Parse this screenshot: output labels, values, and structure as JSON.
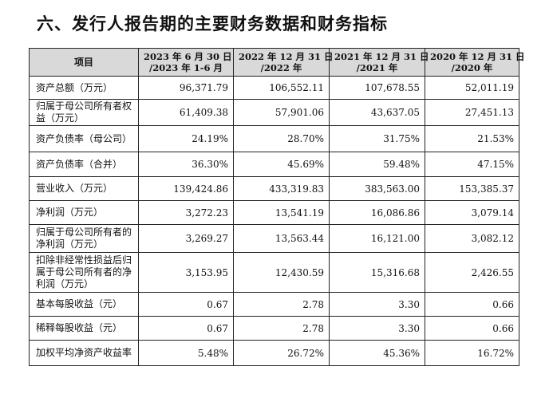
{
  "title": "六、发行人报告期的主要财务数据和财务指标",
  "headers": [
    {
      "l1": "项目",
      "l2": ""
    },
    {
      "l1": "2023 年 6 月 30 日",
      "l2": "/2023 年 1-6 月"
    },
    {
      "l1": "2022 年 12 月 31 日",
      "l2": "/2022 年"
    },
    {
      "l1": "2021 年 12 月 31 日",
      "l2": "/2021 年"
    },
    {
      "l1": "2020 年 12 月 31 日",
      "l2": "/2020 年"
    }
  ],
  "rows": [
    {
      "label": "资产总额（万元）",
      "values": [
        "96,371.79",
        "106,552.11",
        "107,678.55",
        "52,011.19"
      ]
    },
    {
      "label": "归属于母公司所有者权益（万元）",
      "values": [
        "61,409.38",
        "57,901.06",
        "43,637.05",
        "27,451.13"
      ]
    },
    {
      "label": "资产负债率（母公司）",
      "values": [
        "24.19%",
        "28.70%",
        "31.75%",
        "21.53%"
      ]
    },
    {
      "label": "资产负债率（合并）",
      "values": [
        "36.30%",
        "45.69%",
        "59.48%",
        "47.15%"
      ]
    },
    {
      "label": "营业收入（万元）",
      "values": [
        "139,424.86",
        "433,319.83",
        "383,563.00",
        "153,385.37"
      ]
    },
    {
      "label": "净利润（万元）",
      "values": [
        "3,272.23",
        "13,541.19",
        "16,086.86",
        "3,079.14"
      ]
    },
    {
      "label": "归属于母公司所有者的净利润（万元）",
      "values": [
        "3,269.27",
        "13,563.44",
        "16,121.00",
        "3,082.12"
      ]
    },
    {
      "label": "扣除非经常性损益后归属于母公司所有者的净利润（万元）",
      "values": [
        "3,153.95",
        "12,430.59",
        "15,316.68",
        "2,426.55"
      ]
    },
    {
      "label": "基本每股收益（元）",
      "values": [
        "0.67",
        "2.78",
        "3.30",
        "0.66"
      ]
    },
    {
      "label": "稀释每股收益（元）",
      "values": [
        "0.67",
        "2.78",
        "3.30",
        "0.66"
      ]
    },
    {
      "label": "加权平均净资产收益率",
      "values": [
        "5.48%",
        "26.72%",
        "45.36%",
        "16.72%"
      ]
    }
  ]
}
